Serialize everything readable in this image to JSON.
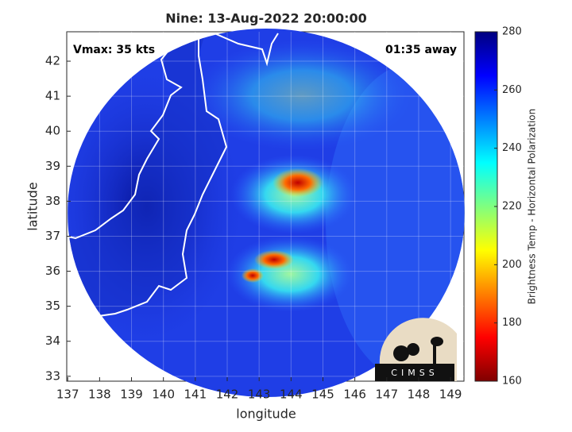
{
  "chart_data": {
    "type": "map",
    "title": "Nine: 13-Aug-2022 20:00:00",
    "annotations": {
      "left": "Vmax: 35 kts",
      "right": "01:35 away"
    },
    "x_label": "longitude",
    "y_label": "latitude",
    "xlim": [
      136.97,
      149.42
    ],
    "xticks": [
      137,
      138,
      139,
      140,
      141,
      142,
      143,
      144,
      145,
      146,
      147,
      148,
      149
    ],
    "ylim": [
      32.86,
      42.84
    ],
    "yticks": [
      33,
      34,
      35,
      36,
      37,
      38,
      39,
      40,
      41,
      42
    ],
    "grid": true,
    "colorbar": {
      "label": "Brightness Temp - Horizontal Polarization",
      "lim": [
        160,
        280
      ],
      "ticks": [
        160,
        180,
        200,
        220,
        240,
        260,
        280
      ]
    },
    "logo": "CIMSS"
  }
}
